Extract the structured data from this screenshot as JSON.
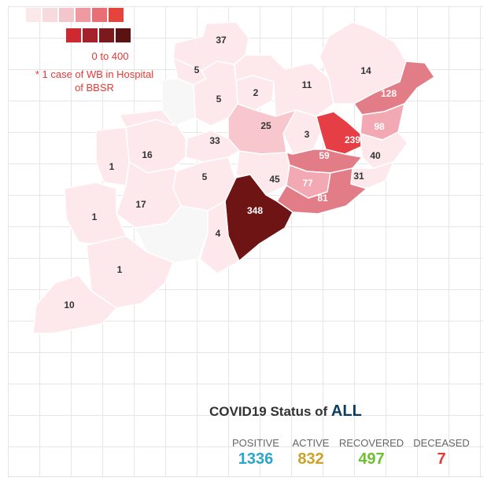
{
  "legend": {
    "swatches": [
      "#fbe9ea",
      "#f6dadd",
      "#f2c6ca",
      "#ef9aa0",
      "#ea6e75",
      "#e6433d",
      "#cc2a30",
      "#a5222b",
      "#7a1a1d",
      "#5a1212"
    ],
    "range_text": "0 to 400",
    "note_line1": "* 1 case of WB in Hospital",
    "note_line2": "of BBSR"
  },
  "map": {
    "district_case_counts": [
      "37",
      "5",
      "2",
      "5",
      "11",
      "14",
      "128",
      "98",
      "25",
      "3",
      "239",
      "40",
      "59",
      "31",
      "33",
      "16",
      "1",
      "5",
      "45",
      "77",
      "81",
      "17",
      "1",
      "348",
      "4",
      "1",
      "10"
    ],
    "colors": {
      "none": "#f7f7f7",
      "low": "#fde9ec",
      "mid": "#f8c6cd",
      "mid2": "#f2a9b3",
      "high": "#e27c86",
      "red": "#e53e45",
      "max": "#6e1414",
      "border": "#ffffff"
    }
  },
  "status": {
    "title_prefix": "COVID19 Status of ",
    "scope": "ALL",
    "positive_label": "POSITIVE",
    "positive_value": "1336",
    "active_label": "ACTIVE",
    "active_value": "832",
    "recovered_label": "RECOVERED",
    "recovered_value": "497",
    "deceased_label": "DECEASED",
    "deceased_value": "7",
    "colors": {
      "positive": "#2aa6c9",
      "active": "#c9a227",
      "recovered": "#6cbf2f",
      "deceased": "#e53935"
    }
  }
}
